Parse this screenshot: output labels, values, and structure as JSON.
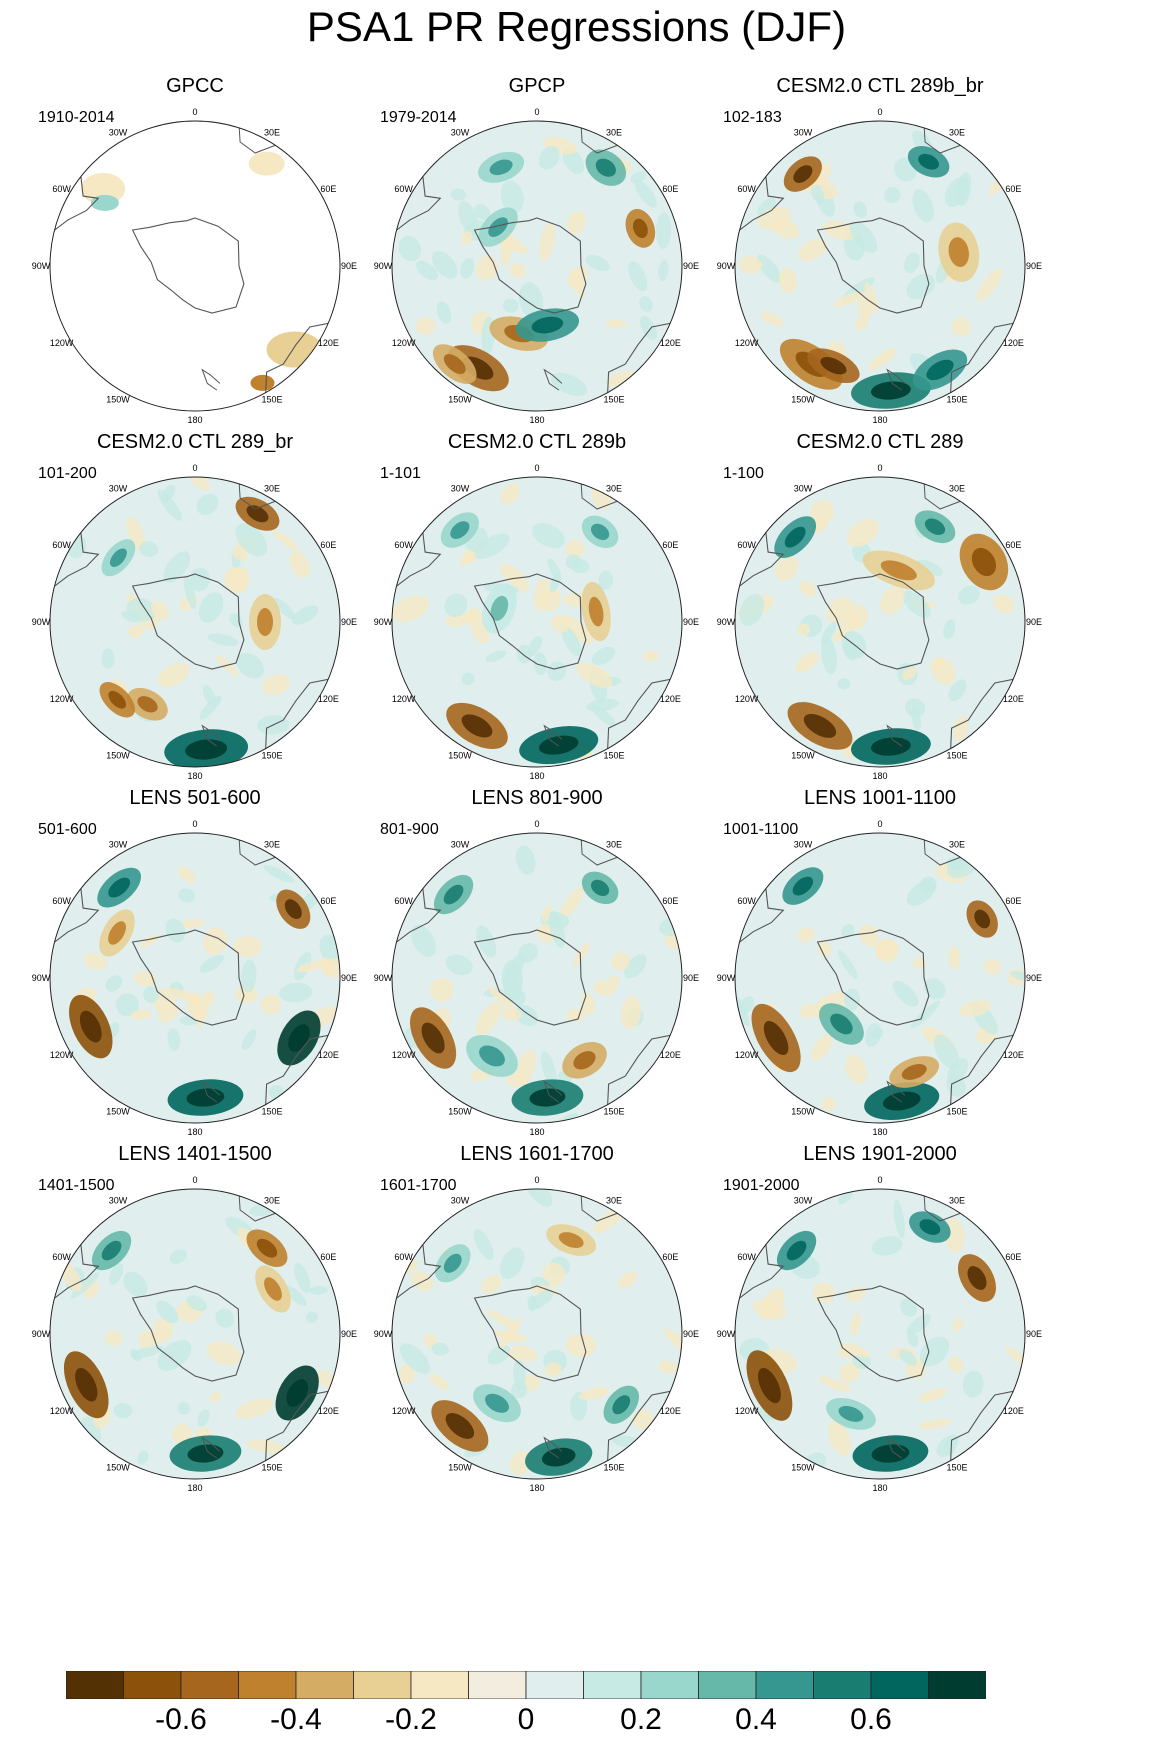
{
  "title": "PSA1 PR Regressions (DJF)",
  "lon_labels": [
    "0",
    "30E",
    "60E",
    "90E",
    "120E",
    "150E",
    "180",
    "150W",
    "120W",
    "90W",
    "60W",
    "30W"
  ],
  "colorbar": {
    "colors": [
      "#543005",
      "#8c510a",
      "#a6661d",
      "#bf812d",
      "#d5ac64",
      "#e8cf94",
      "#f6e8c3",
      "#f3ede0",
      "#e0efed",
      "#c7eae5",
      "#99d6cb",
      "#66b8a9",
      "#35978f",
      "#1a7d71",
      "#01665e",
      "#003c30"
    ],
    "tick_labels": [
      "-0.6",
      "-0.4",
      "-0.2",
      "0",
      "0.2",
      "0.4",
      "0.6"
    ]
  },
  "panels": [
    {
      "title": "GPCC",
      "years": "1910-2014"
    },
    {
      "title": "GPCP",
      "years": "1979-2014"
    },
    {
      "title": "CESM2.0 CTL 289b_br",
      "years": "102-183"
    },
    {
      "title": "CESM2.0 CTL 289_br",
      "years": "101-200"
    },
    {
      "title": "CESM2.0 CTL 289b",
      "years": "1-101"
    },
    {
      "title": "CESM2.0 CTL 289",
      "years": "1-100"
    },
    {
      "title": "LENS 501-600",
      "years": "501-600"
    },
    {
      "title": "LENS 801-900",
      "years": "801-900"
    },
    {
      "title": "LENS 1001-1100",
      "years": "1001-1100"
    },
    {
      "title": "LENS 1401-1500",
      "years": "1401-1500"
    },
    {
      "title": "LENS 1601-1700",
      "years": "1601-1700"
    },
    {
      "title": "LENS 1901-2000",
      "years": "1901-2000"
    }
  ]
}
